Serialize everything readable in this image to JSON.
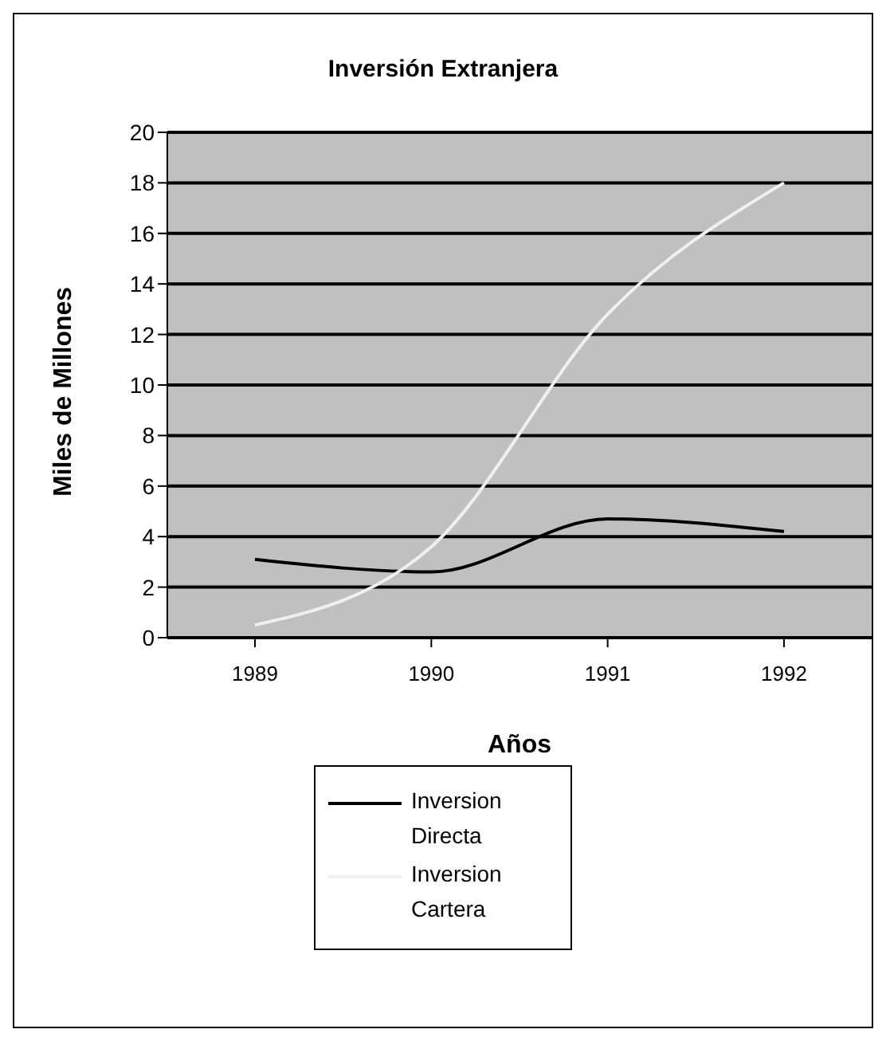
{
  "chart_data": {
    "type": "line",
    "title": "Inversión Extranjera",
    "xlabel": "Años",
    "ylabel": "Miles de Millones",
    "categories": [
      "1989",
      "1990",
      "1991",
      "1992"
    ],
    "series": [
      {
        "name": "Inversion Directa",
        "color": "#000000",
        "values": [
          3.1,
          2.6,
          4.7,
          4.2
        ]
      },
      {
        "name": "Inversion Cartera",
        "color": "#f0f0f0",
        "values": [
          0.5,
          3.6,
          12.8,
          18
        ]
      }
    ],
    "ylim": [
      0,
      20
    ],
    "yticks": [
      0,
      2,
      4,
      6,
      8,
      10,
      12,
      14,
      16,
      18,
      20
    ],
    "grid": "y",
    "legend": "bottom",
    "marker": "none",
    "line_style": "solid"
  }
}
